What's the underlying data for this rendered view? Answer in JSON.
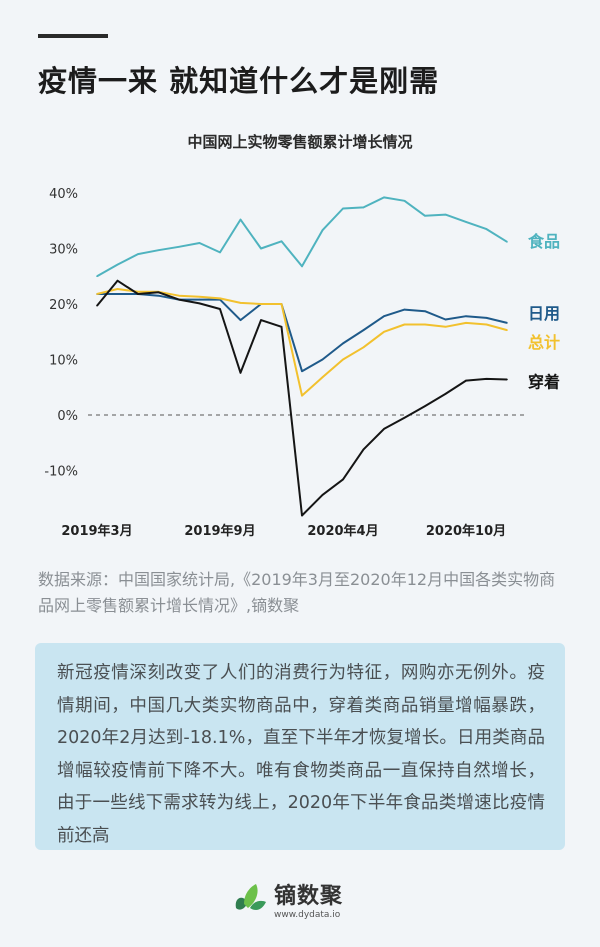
{
  "header": {
    "title": "疫情一来 就知道什么才是刚需"
  },
  "chart_data": {
    "type": "line",
    "title": "中国网上实物零售额累计增长情况",
    "x": [
      "2019-03",
      "2019-04",
      "2019-05",
      "2019-06",
      "2019-07",
      "2019-08",
      "2019-09",
      "2019-10",
      "2019-11",
      "2019-12",
      "2020-02",
      "2020-03",
      "2020-04",
      "2020-05",
      "2020-06",
      "2020-07",
      "2020-08",
      "2020-09",
      "2020-10",
      "2020-11",
      "2020-12"
    ],
    "x_tick_labels": [
      {
        "index": 0,
        "label": "2019年3月"
      },
      {
        "index": 6,
        "label": "2019年9月"
      },
      {
        "index": 12,
        "label": "2020年4月"
      },
      {
        "index": 18,
        "label": "2020年10月"
      }
    ],
    "y_ticks": [
      {
        "value": 40,
        "label": "40%"
      },
      {
        "value": 30,
        "label": "30%"
      },
      {
        "value": 20,
        "label": "20%"
      },
      {
        "value": 10,
        "label": "10%"
      },
      {
        "value": 0,
        "label": "0%"
      },
      {
        "value": -10,
        "label": "-10%"
      }
    ],
    "ylim": [
      -18.5,
      40
    ],
    "zero_line": "dashed",
    "grid": false,
    "legend": "inline-right",
    "series": [
      {
        "name": "食品",
        "color": "#4fb3bf",
        "values": [
          25.0,
          27.1,
          29.0,
          29.7,
          30.3,
          31.0,
          29.3,
          35.2,
          30.0,
          31.3,
          26.8,
          33.3,
          37.2,
          37.4,
          39.2,
          38.6,
          35.9,
          36.1,
          34.8,
          33.5,
          31.2
        ]
      },
      {
        "name": "日用",
        "color": "#1f5a8a",
        "values": [
          21.8,
          21.8,
          21.8,
          21.5,
          20.8,
          20.8,
          20.8,
          17.1,
          20.0,
          20.0,
          7.9,
          10.0,
          12.9,
          15.3,
          17.8,
          19.0,
          18.7,
          17.2,
          17.8,
          17.5,
          16.6
        ]
      },
      {
        "name": "总计",
        "color": "#f2c12e",
        "values": [
          21.8,
          22.7,
          22.2,
          22.2,
          21.5,
          21.3,
          21.0,
          20.2,
          20.0,
          20.0,
          3.5,
          6.8,
          10.0,
          12.2,
          15.0,
          16.3,
          16.3,
          15.9,
          16.6,
          16.3,
          15.3
        ]
      },
      {
        "name": "穿着",
        "color": "#151515",
        "values": [
          19.7,
          24.2,
          21.8,
          22.1,
          20.8,
          20.1,
          19.1,
          7.6,
          17.1,
          15.9,
          -18.1,
          -14.4,
          -11.6,
          -6.2,
          -2.5,
          -0.5,
          1.6,
          3.8,
          6.2,
          6.5,
          6.4
        ]
      }
    ]
  },
  "source": "数据来源：中国国家统计局,《2019年3月至2020年12月中国各类实物商品网上零售额累计增长情况》,镝数聚",
  "summary": "新冠疫情深刻改变了人们的消费行为特征，网购亦无例外。疫情期间，中国几大类实物商品中，穿着类商品销量增幅暴跌，2020年2月达到-18.1%，直至下半年才恢复增长。日用类商品增幅较疫情前下降不大。唯有食物类商品一直保持自然增长，由于一些线下需求转为线上，2020年下半年食品类增速比疫情前还高",
  "logo": {
    "name": "镝数聚",
    "url": "www.dydata.io"
  }
}
